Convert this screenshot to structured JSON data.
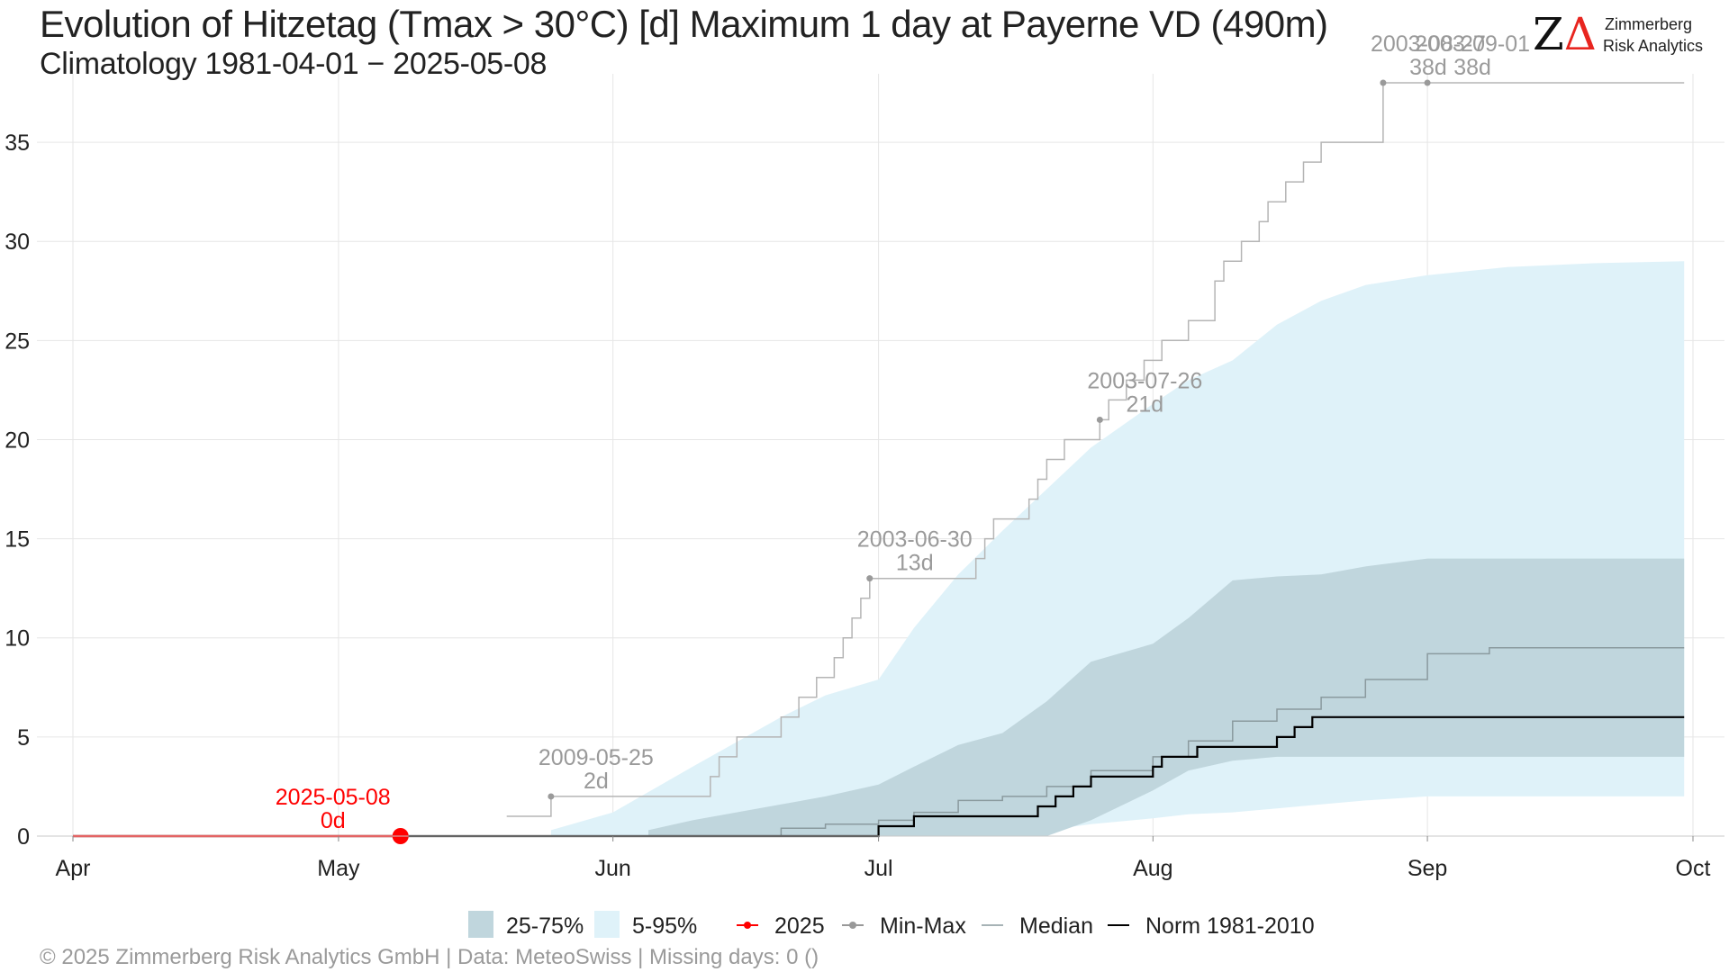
{
  "title": "Evolution of Hitzetag (Tmax > 30°C) [d] Maximum 1 day at Payerne  VD (490m)",
  "subtitle": "Climatology 1981-04-01 − 2025-05-08",
  "logo": {
    "line1": "Zimmerberg",
    "line2": "Risk Analytics"
  },
  "footer": "©  2025 Zimmerberg Risk Analytics GmbH | Data: MeteoSwiss | Missing days: 0 ()",
  "colors": {
    "band_25_75": "#c0d6dd",
    "band_5_95": "#dff2f9",
    "current": "#ff0000",
    "minmax": "#b5b5b5",
    "median": "#8a9a9e",
    "norm": "#000000",
    "grid": "#e6e6e6"
  },
  "chart_data": {
    "type": "line",
    "ylim": [
      0,
      38
    ],
    "y_ticks": [
      0,
      5,
      10,
      15,
      20,
      25,
      30,
      35
    ],
    "x_domain": [
      "04-01",
      "10-01"
    ],
    "x_ticks": [
      {
        "date": "04-01",
        "label": "Apr"
      },
      {
        "date": "05-01",
        "label": "May"
      },
      {
        "date": "06-01",
        "label": "Jun"
      },
      {
        "date": "07-01",
        "label": "Jul"
      },
      {
        "date": "08-01",
        "label": "Aug"
      },
      {
        "date": "09-01",
        "label": "Sep"
      },
      {
        "date": "10-01",
        "label": "Oct"
      }
    ],
    "legend": [
      {
        "key": "band_25_75",
        "label": "25-75%"
      },
      {
        "key": "band_5_95",
        "label": "5-95%"
      },
      {
        "key": "current",
        "label": "2025"
      },
      {
        "key": "minmax",
        "label": "Min-Max"
      },
      {
        "key": "median",
        "label": "Median"
      },
      {
        "key": "norm",
        "label": "Norm 1981-2010"
      }
    ],
    "band_5_95": {
      "x": [
        "05-25",
        "06-01",
        "06-10",
        "06-20",
        "06-25",
        "07-01",
        "07-05",
        "07-10",
        "07-15",
        "07-20",
        "07-25",
        "08-01",
        "08-05",
        "08-10",
        "08-15",
        "08-20",
        "08-25",
        "09-01",
        "09-10",
        "09-20",
        "09-30"
      ],
      "lower": [
        0,
        0,
        0,
        0,
        0,
        0,
        0,
        0,
        0,
        0.3,
        0.6,
        0.9,
        1.1,
        1.2,
        1.4,
        1.6,
        1.8,
        2,
        2,
        2,
        2
      ],
      "upper": [
        0.3,
        1.2,
        3.5,
        6,
        7.1,
        7.9,
        10.5,
        13.2,
        15.4,
        17.5,
        19.6,
        21.8,
        23,
        24,
        25.8,
        27,
        27.8,
        28.3,
        28.7,
        28.9,
        29
      ]
    },
    "band_25_75": {
      "x": [
        "06-05",
        "06-10",
        "06-20",
        "06-25",
        "07-01",
        "07-05",
        "07-10",
        "07-15",
        "07-20",
        "07-25",
        "08-01",
        "08-05",
        "08-10",
        "08-15",
        "08-20",
        "08-25",
        "09-01",
        "09-10",
        "09-30"
      ],
      "lower": [
        0,
        0,
        0,
        0,
        0,
        0,
        0,
        0,
        0,
        0.8,
        2.3,
        3.3,
        3.8,
        4,
        4,
        4,
        4,
        4,
        4
      ],
      "upper": [
        0.3,
        0.8,
        1.6,
        2,
        2.6,
        3.5,
        4.6,
        5.2,
        6.8,
        8.8,
        9.7,
        11,
        12.9,
        13.1,
        13.2,
        13.6,
        14,
        14,
        14
      ]
    },
    "median": {
      "x": [
        "06-15",
        "06-20",
        "06-25",
        "07-01",
        "07-05",
        "07-10",
        "07-15",
        "07-20",
        "07-25",
        "08-01",
        "08-05",
        "08-10",
        "08-15",
        "08-20",
        "08-25",
        "09-01",
        "09-08",
        "09-30"
      ],
      "y": [
        0,
        0.4,
        0.6,
        0.8,
        1.2,
        1.8,
        2,
        2.5,
        3.3,
        4,
        4.8,
        5.8,
        6.4,
        7,
        7.9,
        9.2,
        9.5,
        9.5
      ]
    },
    "norm": {
      "x": [
        "04-01",
        "06-30",
        "07-01",
        "07-05",
        "07-19",
        "07-21",
        "07-23",
        "07-25",
        "08-01",
        "08-02",
        "08-06",
        "08-15",
        "08-17",
        "08-19",
        "09-30"
      ],
      "y": [
        0,
        0,
        0.5,
        1,
        1.5,
        2,
        2.5,
        3,
        3.5,
        4,
        4.5,
        5,
        5.5,
        6,
        6
      ]
    },
    "minmax": {
      "x": [
        "05-20",
        "05-25",
        "06-12",
        "06-13",
        "06-15",
        "06-20",
        "06-22",
        "06-24",
        "06-26",
        "06-27",
        "06-28",
        "06-29",
        "06-30",
        "07-12",
        "07-13",
        "07-14",
        "07-18",
        "07-19",
        "07-20",
        "07-22",
        "07-26",
        "07-27",
        "07-29",
        "07-31",
        "08-02",
        "08-05",
        "08-08",
        "08-09",
        "08-11",
        "08-13",
        "08-14",
        "08-16",
        "08-18",
        "08-20",
        "08-27",
        "09-01",
        "09-30"
      ],
      "y": [
        1,
        2,
        3,
        4,
        5,
        6,
        7,
        8,
        9,
        10,
        11,
        12,
        13,
        14,
        15,
        16,
        17,
        18,
        19,
        20,
        21,
        22,
        23,
        24,
        25,
        26,
        28,
        29,
        30,
        31,
        32,
        33,
        34,
        35,
        38,
        38,
        38
      ]
    },
    "current": {
      "x": [
        "04-01",
        "05-08"
      ],
      "y": [
        0,
        0
      ],
      "marker": {
        "date": "05-08",
        "value": 0
      }
    },
    "annotations": [
      {
        "date": "05-08",
        "value": 0,
        "label": "2025-05-08",
        "days": "0d",
        "color_key": "current",
        "marker": false
      },
      {
        "date": "05-25",
        "value": 2,
        "label": "2009-05-25",
        "days": "2d",
        "color_key": "minmax",
        "marker": true
      },
      {
        "date": "06-30",
        "value": 13,
        "label": "2003-06-30",
        "days": "13d",
        "color_key": "minmax",
        "marker": true
      },
      {
        "date": "07-26",
        "value": 21,
        "label": "2003-07-26",
        "days": "21d",
        "color_key": "minmax",
        "marker": true
      },
      {
        "date": "08-27",
        "value": 38,
        "label": "2003-08-27",
        "days": "38d",
        "color_key": "minmax",
        "marker": true
      },
      {
        "date": "09-01",
        "value": 38,
        "label": "2003-09-01",
        "days": "38d",
        "color_key": "minmax",
        "marker": true
      }
    ]
  }
}
